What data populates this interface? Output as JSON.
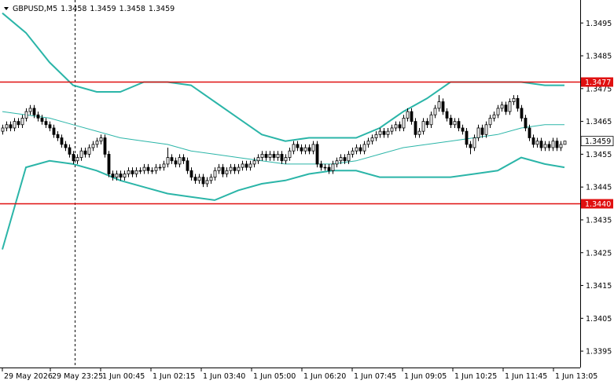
{
  "chart_data": {
    "type": "candlestick",
    "symbol": "GBPUSD,M5",
    "header_values": [
      1.3458,
      1.3459,
      1.3458,
      1.3459
    ],
    "ylim": [
      1.339,
      1.3502
    ],
    "yticks": [
      1.3495,
      1.3485,
      1.3475,
      1.3465,
      1.3455,
      1.3445,
      1.3435,
      1.3425,
      1.3415,
      1.3405,
      1.3395
    ],
    "xlim": [
      -0.6,
      147
    ],
    "xticks": [
      {
        "value": 0,
        "label": "29 May 2026"
      },
      {
        "value": 12.2,
        "label": "29 May 23:25"
      },
      {
        "value": 25,
        "label": "1 Jun 00:45"
      },
      {
        "value": 37.8,
        "label": "1 Jun 02:15"
      },
      {
        "value": 50.6,
        "label": "1 Jun 03:40"
      },
      {
        "value": 63.4,
        "label": "1 Jun 05:00"
      },
      {
        "value": 76.2,
        "label": "1 Jun 06:20"
      },
      {
        "value": 89,
        "label": "1 Jun 07:45"
      },
      {
        "value": 101.8,
        "label": "1 Jun 09:05"
      },
      {
        "value": 114.6,
        "label": "1 Jun 10:25"
      },
      {
        "value": 127.4,
        "label": "1 Jun 11:45"
      },
      {
        "value": 140.2,
        "label": "1 Jun 13:05"
      }
    ],
    "levels": [
      {
        "value": 1.3477,
        "color": "#e01010"
      },
      {
        "value": {
          "value": 1.344,
          "label": "1.3440"
        },
        "color": "#e01010"
      }
    ],
    "last_price": 1.3459,
    "candles": [
      [
        1.3462,
        1.3464,
        1.3461,
        1.3463
      ],
      [
        1.3463,
        1.3465,
        1.3462,
        1.3464
      ],
      [
        1.3464,
        1.3465,
        1.3462,
        1.3463
      ],
      [
        1.3463,
        1.3466,
        1.3462,
        1.3465
      ],
      [
        1.3465,
        1.3466,
        1.3463,
        1.3464
      ],
      [
        1.3464,
        1.3467,
        1.3463,
        1.3466
      ],
      [
        1.3466,
        1.3469,
        1.3465,
        1.3468
      ],
      [
        1.3468,
        1.347,
        1.3467,
        1.3469
      ],
      [
        1.3469,
        1.347,
        1.3466,
        1.3467
      ],
      [
        1.3467,
        1.3468,
        1.3465,
        1.3466
      ],
      [
        1.3466,
        1.3467,
        1.3464,
        1.3465
      ],
      [
        1.3465,
        1.3466,
        1.3463,
        1.3464
      ],
      [
        1.3464,
        1.3465,
        1.3462,
        1.3463
      ],
      [
        1.3463,
        1.3464,
        1.346,
        1.3461
      ],
      [
        1.3461,
        1.3462,
        1.3459,
        1.346
      ],
      [
        1.346,
        1.3461,
        1.3457,
        1.3458
      ],
      [
        1.3458,
        1.3459,
        1.3456,
        1.3457
      ],
      [
        1.3457,
        1.3458,
        1.3454,
        1.3455
      ],
      [
        1.3455,
        1.3456,
        1.3452,
        1.3453
      ],
      [
        1.3453,
        1.3455,
        1.3452,
        1.3454
      ],
      [
        1.3454,
        1.3457,
        1.3453,
        1.3456
      ],
      [
        1.3456,
        1.3457,
        1.3454,
        1.3455
      ],
      [
        1.3455,
        1.3458,
        1.3454,
        1.3457
      ],
      [
        1.3457,
        1.3459,
        1.3456,
        1.3458
      ],
      [
        1.3458,
        1.346,
        1.3457,
        1.3459
      ],
      [
        1.3459,
        1.3461,
        1.3458,
        1.346
      ],
      [
        1.346,
        1.3461,
        1.3454,
        1.3455
      ],
      [
        1.3455,
        1.3456,
        1.3448,
        1.3449
      ],
      [
        1.3449,
        1.345,
        1.3447,
        1.3448
      ],
      [
        1.3448,
        1.345,
        1.3447,
        1.3449
      ],
      [
        1.3449,
        1.345,
        1.3447,
        1.3448
      ],
      [
        1.3448,
        1.345,
        1.3447,
        1.3449
      ],
      [
        1.3449,
        1.3451,
        1.3448,
        1.345
      ],
      [
        1.345,
        1.3451,
        1.3448,
        1.3449
      ],
      [
        1.3449,
        1.3451,
        1.3448,
        1.345
      ],
      [
        1.345,
        1.3451,
        1.3449,
        1.345
      ],
      [
        1.345,
        1.3452,
        1.3449,
        1.3451
      ],
      [
        1.3451,
        1.3452,
        1.3449,
        1.345
      ],
      [
        1.345,
        1.3451,
        1.3449,
        1.345
      ],
      [
        1.345,
        1.3452,
        1.3449,
        1.3451
      ],
      [
        1.3451,
        1.3452,
        1.345,
        1.3451
      ],
      [
        1.3451,
        1.3453,
        1.345,
        1.3452
      ],
      [
        1.3452,
        1.3457,
        1.3451,
        1.3454
      ],
      [
        1.3454,
        1.3455,
        1.3452,
        1.3453
      ],
      [
        1.3453,
        1.3454,
        1.3451,
        1.3452
      ],
      [
        1.3452,
        1.3455,
        1.3451,
        1.3454
      ],
      [
        1.3454,
        1.3455,
        1.3452,
        1.3453
      ],
      [
        1.3453,
        1.3454,
        1.3449,
        1.345
      ],
      [
        1.345,
        1.3451,
        1.3447,
        1.3448
      ],
      [
        1.3448,
        1.3449,
        1.3446,
        1.3447
      ],
      [
        1.3447,
        1.3449,
        1.3446,
        1.3448
      ],
      [
        1.3448,
        1.3449,
        1.3445,
        1.3446
      ],
      [
        1.3446,
        1.3448,
        1.3445,
        1.3447
      ],
      [
        1.3447,
        1.3449,
        1.3446,
        1.3448
      ],
      [
        1.3448,
        1.3451,
        1.3447,
        1.345
      ],
      [
        1.345,
        1.3452,
        1.3449,
        1.3451
      ],
      [
        1.3451,
        1.3452,
        1.3448,
        1.3449
      ],
      [
        1.3449,
        1.3451,
        1.3448,
        1.345
      ],
      [
        1.345,
        1.3452,
        1.3449,
        1.3451
      ],
      [
        1.3451,
        1.3452,
        1.3449,
        1.345
      ],
      [
        1.345,
        1.3452,
        1.3449,
        1.3451
      ],
      [
        1.3451,
        1.3453,
        1.345,
        1.3452
      ],
      [
        1.3452,
        1.3453,
        1.345,
        1.3451
      ],
      [
        1.3451,
        1.3453,
        1.345,
        1.3452
      ],
      [
        1.3452,
        1.3454,
        1.3451,
        1.3453
      ],
      [
        1.3453,
        1.3455,
        1.3452,
        1.3454
      ],
      [
        1.3454,
        1.3456,
        1.3453,
        1.3455
      ],
      [
        1.3455,
        1.3456,
        1.3453,
        1.3454
      ],
      [
        1.3454,
        1.3456,
        1.3453,
        1.3455
      ],
      [
        1.3455,
        1.3456,
        1.3453,
        1.3454
      ],
      [
        1.3454,
        1.3456,
        1.3453,
        1.3455
      ],
      [
        1.3455,
        1.3456,
        1.3452,
        1.3453
      ],
      [
        1.3453,
        1.3455,
        1.3452,
        1.3454
      ],
      [
        1.3454,
        1.3457,
        1.3453,
        1.3456
      ],
      [
        1.3456,
        1.3459,
        1.3455,
        1.3458
      ],
      [
        1.3458,
        1.3459,
        1.3456,
        1.3457
      ],
      [
        1.3457,
        1.3458,
        1.3455,
        1.3456
      ],
      [
        1.3456,
        1.3458,
        1.3455,
        1.3457
      ],
      [
        1.3457,
        1.3458,
        1.3455,
        1.3456
      ],
      [
        1.3456,
        1.3459,
        1.3455,
        1.3458
      ],
      [
        1.3458,
        1.3459,
        1.3451,
        1.3452
      ],
      [
        1.3452,
        1.3453,
        1.345,
        1.3451
      ],
      [
        1.3451,
        1.3452,
        1.345,
        1.3451
      ],
      [
        1.3451,
        1.3452,
        1.3449,
        1.345
      ],
      [
        1.345,
        1.3453,
        1.3449,
        1.3452
      ],
      [
        1.3452,
        1.3454,
        1.3451,
        1.3453
      ],
      [
        1.3453,
        1.3455,
        1.3452,
        1.3454
      ],
      [
        1.3454,
        1.3455,
        1.3452,
        1.3453
      ],
      [
        1.3453,
        1.3456,
        1.3452,
        1.3455
      ],
      [
        1.3455,
        1.3457,
        1.3454,
        1.3456
      ],
      [
        1.3456,
        1.3458,
        1.3455,
        1.3457
      ],
      [
        1.3457,
        1.3458,
        1.3455,
        1.3456
      ],
      [
        1.3456,
        1.3459,
        1.3455,
        1.3458
      ],
      [
        1.3458,
        1.346,
        1.3457,
        1.3459
      ],
      [
        1.3459,
        1.3461,
        1.3458,
        1.346
      ],
      [
        1.346,
        1.3462,
        1.3459,
        1.3461
      ],
      [
        1.3461,
        1.3463,
        1.346,
        1.3462
      ],
      [
        1.3462,
        1.3463,
        1.346,
        1.3461
      ],
      [
        1.3461,
        1.3463,
        1.346,
        1.3462
      ],
      [
        1.3462,
        1.3464,
        1.3461,
        1.3463
      ],
      [
        1.3463,
        1.3465,
        1.3462,
        1.3464
      ],
      [
        1.3464,
        1.3465,
        1.3462,
        1.3463
      ],
      [
        1.3463,
        1.3467,
        1.3462,
        1.3466
      ],
      [
        1.3466,
        1.3469,
        1.3465,
        1.3468
      ],
      [
        1.3468,
        1.3469,
        1.3464,
        1.3465
      ],
      [
        1.3465,
        1.3466,
        1.346,
        1.3461
      ],
      [
        1.3461,
        1.3463,
        1.346,
        1.3462
      ],
      [
        1.3462,
        1.3466,
        1.3461,
        1.3465
      ],
      [
        1.3465,
        1.3466,
        1.3463,
        1.3464
      ],
      [
        1.3464,
        1.3468,
        1.3463,
        1.3467
      ],
      [
        1.3467,
        1.347,
        1.3466,
        1.3469
      ],
      [
        1.3469,
        1.3473,
        1.3468,
        1.3471
      ],
      [
        1.3471,
        1.3472,
        1.3467,
        1.3468
      ],
      [
        1.3468,
        1.3469,
        1.3465,
        1.3466
      ],
      [
        1.3466,
        1.3467,
        1.3463,
        1.3464
      ],
      [
        1.3464,
        1.3466,
        1.3463,
        1.3465
      ],
      [
        1.3465,
        1.3466,
        1.3462,
        1.3463
      ],
      [
        1.3463,
        1.3464,
        1.3461,
        1.3462
      ],
      [
        1.3462,
        1.3463,
        1.3457,
        1.3458
      ],
      [
        1.3458,
        1.3459,
        1.3455,
        1.3457
      ],
      [
        1.3457,
        1.3461,
        1.3456,
        1.346
      ],
      [
        1.346,
        1.3464,
        1.3459,
        1.3463
      ],
      [
        1.3463,
        1.3464,
        1.346,
        1.3461
      ],
      [
        1.3461,
        1.3465,
        1.346,
        1.3464
      ],
      [
        1.3464,
        1.3467,
        1.3463,
        1.3466
      ],
      [
        1.3466,
        1.3468,
        1.3465,
        1.3467
      ],
      [
        1.3467,
        1.347,
        1.3466,
        1.3469
      ],
      [
        1.3469,
        1.3471,
        1.3468,
        1.347
      ],
      [
        1.347,
        1.3471,
        1.3467,
        1.3468
      ],
      [
        1.3468,
        1.3472,
        1.3467,
        1.3471
      ],
      [
        1.3471,
        1.3473,
        1.347,
        1.3472
      ],
      [
        1.3472,
        1.3473,
        1.3468,
        1.3469
      ],
      [
        1.3469,
        1.347,
        1.3465,
        1.3466
      ],
      [
        1.3466,
        1.3467,
        1.3462,
        1.3463
      ],
      [
        1.3463,
        1.3464,
        1.3459,
        1.346
      ],
      [
        1.346,
        1.3461,
        1.3457,
        1.3458
      ],
      [
        1.3458,
        1.346,
        1.3457,
        1.3459
      ],
      [
        1.3459,
        1.346,
        1.3456,
        1.3457
      ],
      [
        1.3457,
        1.3459,
        1.3456,
        1.3458
      ],
      [
        1.3458,
        1.3459,
        1.3456,
        1.3457
      ],
      [
        1.3457,
        1.346,
        1.3456,
        1.3459
      ],
      [
        1.3459,
        1.346,
        1.3456,
        1.3457
      ],
      [
        1.3457,
        1.3459,
        1.3456,
        1.3458
      ],
      [
        1.3458,
        1.3459,
        1.3458,
        1.3459
      ]
    ],
    "band_x": [
      0,
      6,
      12,
      18,
      24,
      30,
      36,
      42,
      48,
      54,
      60,
      66,
      72,
      78,
      84,
      90,
      96,
      102,
      108,
      114,
      120,
      126,
      132,
      138,
      143
    ],
    "bands": [
      {
        "color": "#2bb5a8",
        "values": [
          1.3498,
          1.3492,
          1.3483,
          1.3476,
          1.3474,
          1.3474,
          1.3477,
          1.3477,
          1.3476,
          1.3471,
          1.3466,
          1.3461,
          1.3459,
          1.346,
          1.346,
          1.346,
          1.3463,
          1.3468,
          1.3472,
          1.3477,
          1.3477,
          1.3477,
          1.3477,
          1.3476,
          1.3476
        ]
      },
      {
        "color": "#2bb5a8",
        "values": [
          1.3468,
          1.3467,
          1.3466,
          1.3464,
          1.3462,
          1.346,
          1.3459,
          1.3458,
          1.3456,
          1.3455,
          1.3454,
          1.3453,
          1.3452,
          1.3452,
          1.3452,
          1.3453,
          1.3455,
          1.3457,
          1.3458,
          1.3459,
          1.346,
          1.3461,
          1.3463,
          1.3464,
          1.3464
        ]
      },
      {
        "color": "#2bb5a8",
        "values": [
          1.3426,
          1.3451,
          1.3453,
          1.3452,
          1.345,
          1.3447,
          1.3445,
          1.3443,
          1.3442,
          1.3441,
          1.3444,
          1.3446,
          1.3447,
          1.3449,
          1.345,
          1.345,
          1.3448,
          1.3448,
          1.3448,
          1.3448,
          1.3449,
          1.345,
          1.3454,
          1.3452,
          1.3451
        ]
      }
    ]
  }
}
